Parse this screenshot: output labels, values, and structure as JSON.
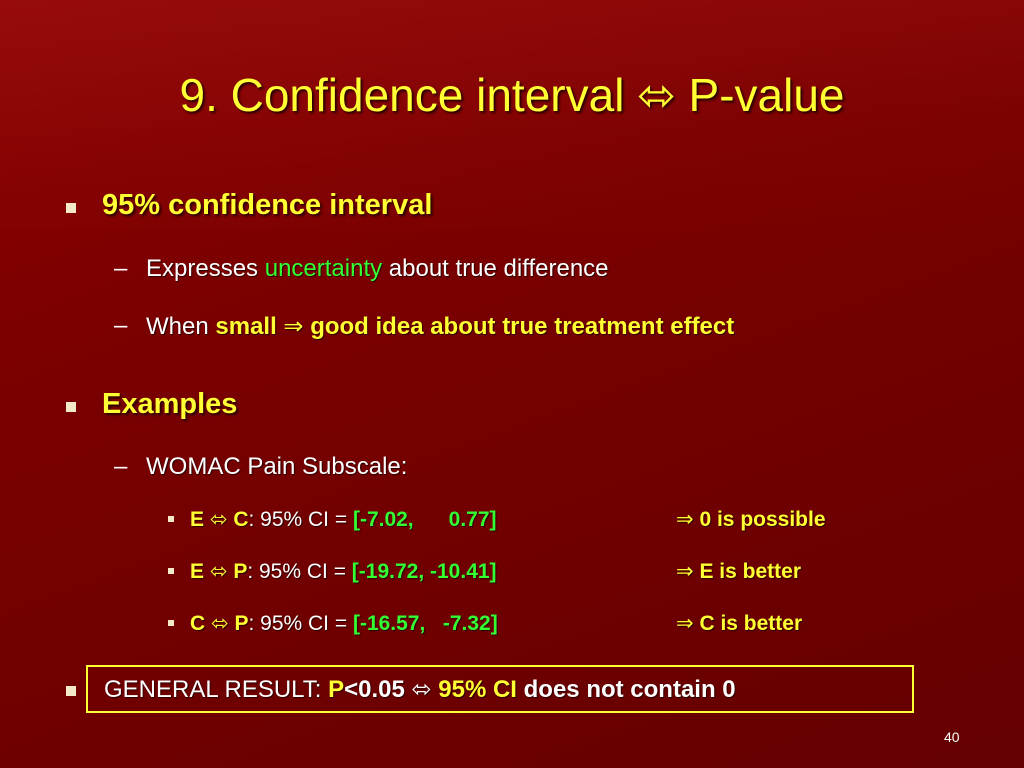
{
  "title": {
    "pre": "9. Confidence interval ",
    "arrow": "⬄",
    "post": " P-value"
  },
  "section1": {
    "heading": "95% confidence interval",
    "item1": {
      "pre": "Expresses ",
      "highlight": "uncertainty",
      "post": " about true difference"
    },
    "item2": {
      "pre": "When ",
      "small": "small",
      "implies": "⇒",
      "post": "good idea about true treatment effect"
    }
  },
  "section2": {
    "heading": "Examples",
    "subheading": "WOMAC Pain Subscale:",
    "rows": [
      {
        "left": "E",
        "arrow": "⬄",
        "right": "C",
        "mid": ": 95% CI = ",
        "ci": "[-7.02,      0.77]",
        "implies": "⇒",
        "conclusion": "0 is possible"
      },
      {
        "left": "E",
        "arrow": "⬄",
        "right": "P",
        "mid": ": 95% CI = ",
        "ci": "[-19.72, -10.41]",
        "implies": "⇒",
        "conclusion": "E is better"
      },
      {
        "left": "C",
        "arrow": "⬄",
        "right": "P",
        "mid": ": 95% CI = ",
        "ci": "[-16.57,   -7.32]",
        "implies": "⇒",
        "conclusion": "C is better"
      }
    ]
  },
  "result": {
    "label": "GENERAL RESULT: ",
    "p": "P",
    "threshold": "<0.05 ",
    "arrow": "⬄",
    "ci": " 95% CI",
    "tail": " does not contain 0"
  },
  "page_number": "40",
  "colors": {
    "background": "#7a0000",
    "title": "#ffff33",
    "highlight": "#33ff33",
    "text": "#ffffff"
  }
}
